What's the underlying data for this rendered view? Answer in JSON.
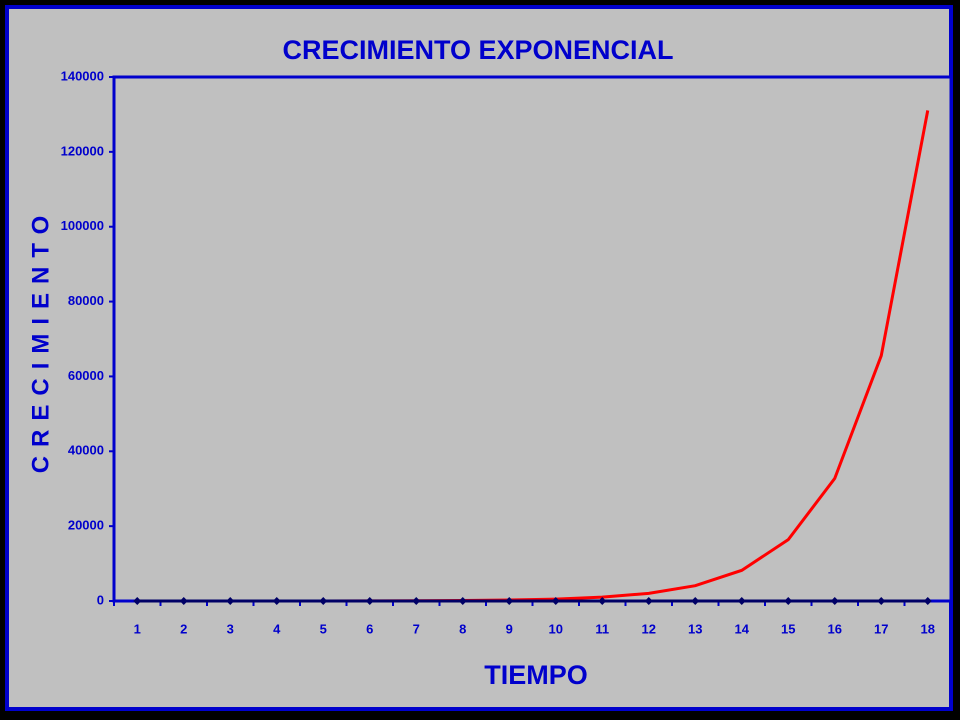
{
  "chart_data": {
    "type": "line",
    "title": "CRECIMIENTO EXPONENCIAL",
    "x_label": "TIEMPO",
    "y_label": "CRECIMIENTO",
    "categories": [
      "1",
      "2",
      "3",
      "4",
      "5",
      "6",
      "7",
      "8",
      "9",
      "10",
      "11",
      "12",
      "13",
      "14",
      "15",
      "16",
      "17",
      "18"
    ],
    "series": [
      {
        "color": "#ff0000",
        "values": [
          1,
          2,
          4,
          8,
          16,
          32,
          64,
          128,
          256,
          512,
          1024,
          2048,
          4096,
          8192,
          16384,
          32768,
          65536,
          131072
        ]
      },
      {
        "color": "#000066",
        "marker": "diamond",
        "values": [
          0,
          0,
          0,
          0,
          0,
          0,
          0,
          0,
          0,
          0,
          0,
          0,
          0,
          0,
          0,
          0,
          0,
          0
        ]
      }
    ],
    "ylim": [
      0,
      140000
    ],
    "yticks": [
      0,
      20000,
      40000,
      60000,
      80000,
      100000,
      120000,
      140000
    ],
    "grid": false
  }
}
